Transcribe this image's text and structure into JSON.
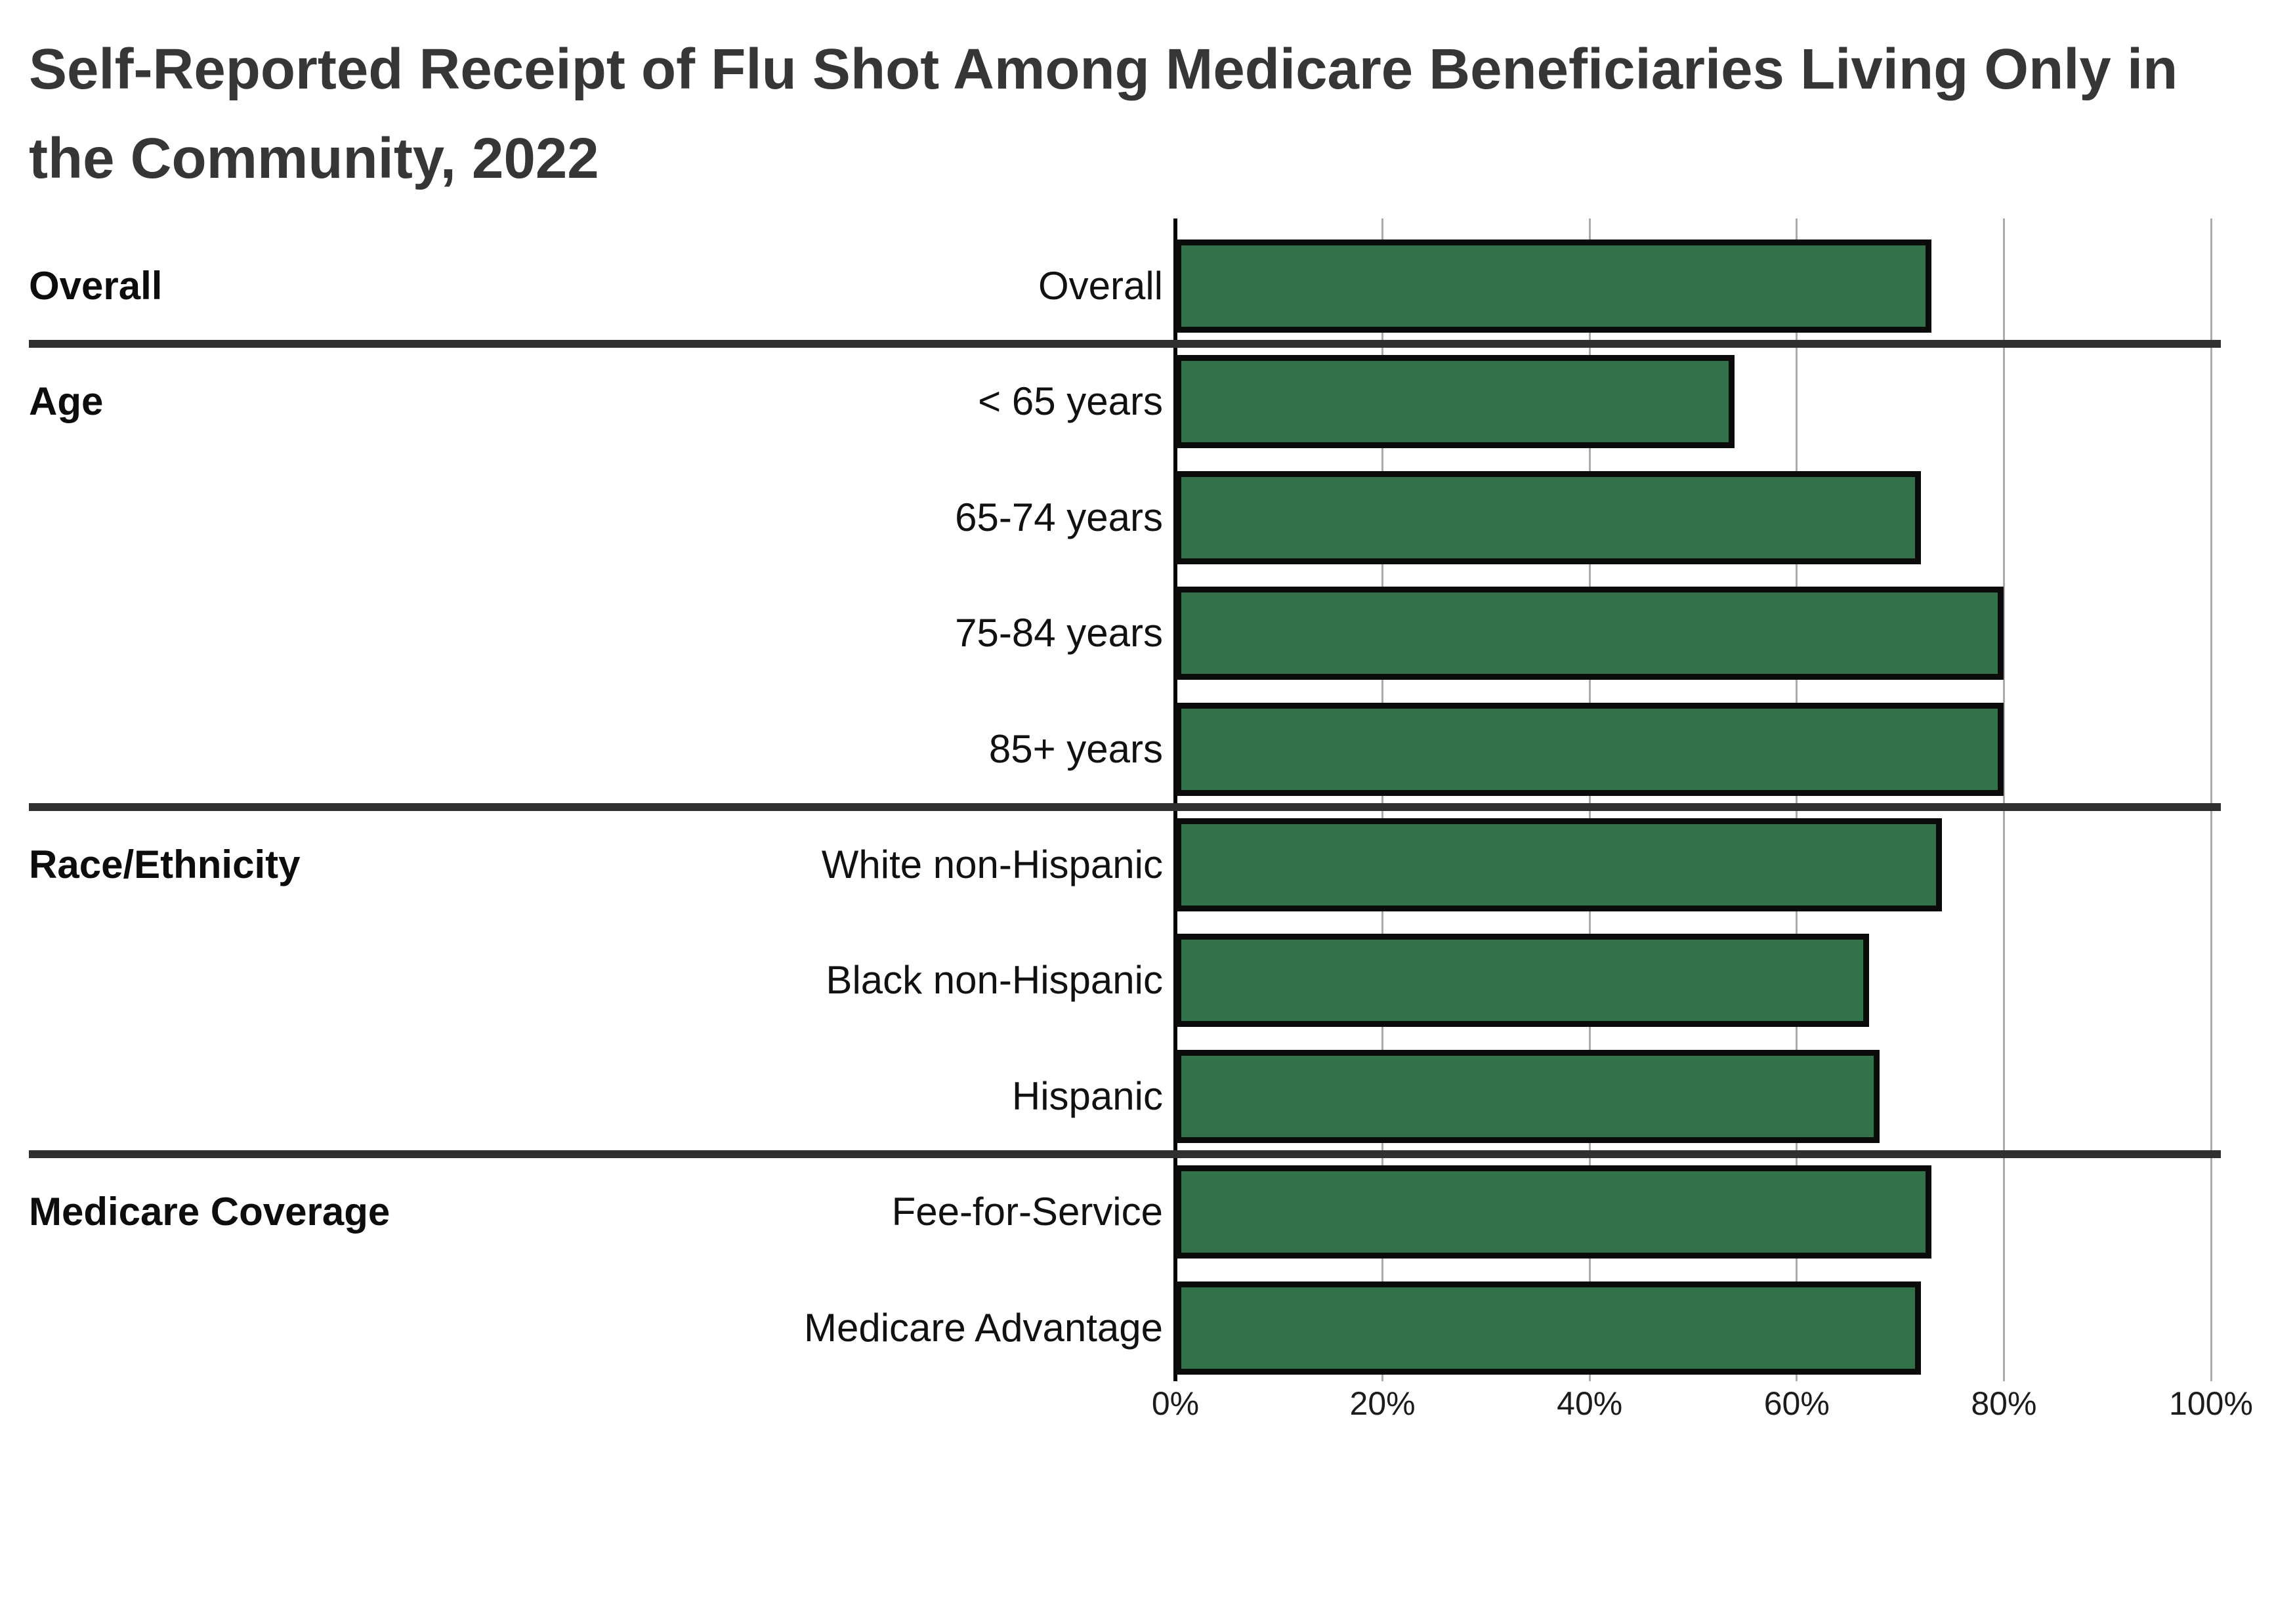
{
  "title": "Self-Reported Receipt of Flu Shot Among Medicare Beneficiaries Living Only in the Community, 2022",
  "chart_data": {
    "type": "bar",
    "orientation": "horizontal",
    "title": "Self-Reported Receipt of Flu Shot Among Medicare Beneficiaries Living Only in the Community, 2022",
    "xlabel": "",
    "ylabel": "",
    "xlim": [
      0,
      100
    ],
    "x_ticks": [
      "0%",
      "20%",
      "40%",
      "60%",
      "80%",
      "100%"
    ],
    "x_tick_values": [
      0,
      20,
      40,
      60,
      80,
      100
    ],
    "grid": true,
    "legend": "none",
    "values_unit": "%",
    "bar_color": "#327249",
    "bar_border_color": "#0b0b0b",
    "gridline_color": "#ababab",
    "axis_color": "#000000",
    "separator_color": "#303030",
    "groups": [
      {
        "label": "Overall",
        "rows": [
          {
            "label": "Overall",
            "value": 73
          }
        ]
      },
      {
        "label": "Age",
        "rows": [
          {
            "label": "< 65 years",
            "value": 54
          },
          {
            "label": "65-74 years",
            "value": 72
          },
          {
            "label": "75-84 years",
            "value": 80
          },
          {
            "label": "85+ years",
            "value": 80
          }
        ]
      },
      {
        "label": "Race/Ethnicity",
        "rows": [
          {
            "label": "White non-Hispanic",
            "value": 74
          },
          {
            "label": "Black non-Hispanic",
            "value": 67
          },
          {
            "label": "Hispanic",
            "value": 68
          }
        ]
      },
      {
        "label": "Medicare Coverage",
        "rows": [
          {
            "label": "Fee-for-Service",
            "value": 73
          },
          {
            "label": "Medicare Advantage",
            "value": 72
          }
        ]
      }
    ]
  }
}
